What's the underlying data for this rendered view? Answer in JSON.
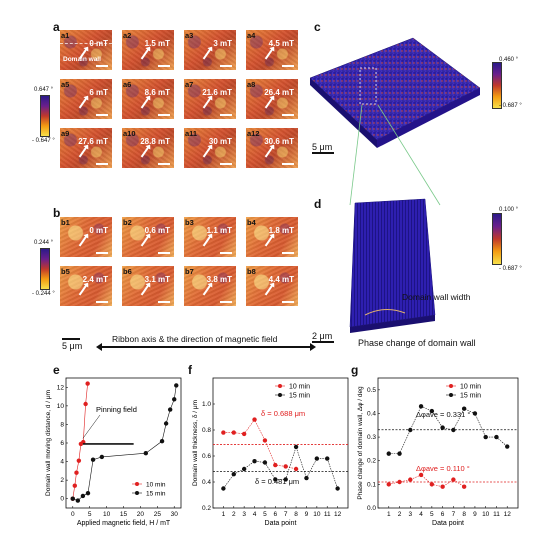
{
  "header_text": "",
  "panel_labels": {
    "a": "a",
    "b": "b",
    "c": "c",
    "d": "d",
    "e": "e",
    "f": "f",
    "g": "g"
  },
  "a_tiles": [
    {
      "id": "a1",
      "field": "0 mT"
    },
    {
      "id": "a2",
      "field": "1.5 mT"
    },
    {
      "id": "a3",
      "field": "3 mT"
    },
    {
      "id": "a4",
      "field": "4.5 mT"
    },
    {
      "id": "a5",
      "field": "6 mT"
    },
    {
      "id": "a6",
      "field": "8.6 mT"
    },
    {
      "id": "a7",
      "field": "21.6 mT"
    },
    {
      "id": "a8",
      "field": "26.4 mT"
    },
    {
      "id": "a9",
      "field": "27.6 mT"
    },
    {
      "id": "a10",
      "field": "28.8 mT"
    },
    {
      "id": "a11",
      "field": "30 mT"
    },
    {
      "id": "a12",
      "field": "30.6 mT"
    }
  ],
  "a_domain_wall_label": "Domain wall",
  "a_colorbar": {
    "max": "0.647 °",
    "min": "- 0.647 °"
  },
  "b_tiles": [
    {
      "id": "b1",
      "field": "0 mT"
    },
    {
      "id": "b2",
      "field": "0.6 mT"
    },
    {
      "id": "b3",
      "field": "1.1 mT"
    },
    {
      "id": "b4",
      "field": "1.8 mT"
    },
    {
      "id": "b5",
      "field": "2.4 mT"
    },
    {
      "id": "b6",
      "field": "3.1 mT"
    },
    {
      "id": "b7",
      "field": "3.8 mT"
    },
    {
      "id": "b8",
      "field": "4.4 mT"
    }
  ],
  "b_colorbar": {
    "max": "0.244 °",
    "min": "- 0.244 °"
  },
  "scale_bar_ab": "5 μm",
  "ribbon_text": "Ribbon axis & the direction of magnetic field",
  "c_colorbar": {
    "max": "0.460 °",
    "min": "- 0.687 °"
  },
  "c_scale": "5 μm",
  "d_colorbar": {
    "max": "0.100 °",
    "min": "- 0.687 °"
  },
  "d_scale": "2 μm",
  "d_domain_wall_width": "Domain wall width",
  "d_caption": "Phase change of domain wall",
  "colors": {
    "red": "#e02020",
    "black": "#111111",
    "blue": "#2a1aa8"
  },
  "chart_data": [
    {
      "id": "e",
      "type": "line",
      "xlabel": "Applied magnetic field, H / mT",
      "ylabel": "Domain wall moving distance, d / μm",
      "xlim": [
        -2,
        32
      ],
      "ylim": [
        -1,
        13
      ],
      "xticks": [
        0,
        5,
        10,
        15,
        20,
        25,
        30
      ],
      "yticks": [
        0,
        2,
        4,
        6,
        8,
        10,
        12
      ],
      "annotation": "Pinning field",
      "legend": "bottom-right",
      "series": [
        {
          "name": "10 min",
          "color": "#e02020",
          "x": [
            0,
            0.6,
            1.1,
            1.8,
            2.4,
            3.1,
            3.8,
            4.4
          ],
          "y": [
            0,
            1.4,
            2.8,
            4.1,
            5.9,
            6.1,
            10.2,
            12.4
          ]
        },
        {
          "name": "15 min",
          "color": "#111111",
          "x": [
            0,
            1.5,
            3,
            4.5,
            6,
            8.6,
            21.6,
            26.4,
            27.6,
            28.8,
            30,
            30.6
          ],
          "y": [
            0,
            -0.2,
            0.3,
            0.6,
            4.2,
            4.5,
            4.9,
            6.2,
            8.1,
            9.6,
            10.7,
            12.2
          ]
        }
      ]
    },
    {
      "id": "f",
      "type": "line",
      "xlabel": "Data point",
      "ylabel": "Domain wall thickness, δ / μm",
      "xlim": [
        0,
        13
      ],
      "ylim": [
        0.2,
        1.2
      ],
      "xticks": [
        1,
        2,
        3,
        4,
        5,
        6,
        7,
        8,
        9,
        10,
        11,
        12
      ],
      "yticks": [
        0.2,
        0.4,
        0.6,
        0.8,
        1.0
      ],
      "legend": "top-right",
      "series": [
        {
          "name": "10 min",
          "color": "#e02020",
          "x": [
            1,
            2,
            3,
            4,
            5,
            6,
            7,
            8
          ],
          "y": [
            0.78,
            0.78,
            0.77,
            0.88,
            0.72,
            0.53,
            0.52,
            0.5
          ]
        },
        {
          "name": "15 min",
          "color": "#111111",
          "x": [
            1,
            2,
            3,
            4,
            5,
            6,
            7,
            8,
            9,
            10,
            11,
            12
          ],
          "y": [
            0.35,
            0.46,
            0.5,
            0.56,
            0.55,
            0.42,
            0.42,
            0.67,
            0.43,
            0.58,
            0.58,
            0.35
          ]
        }
      ],
      "hlines": [
        {
          "y": 0.688,
          "color": "#e02020",
          "label": "δ = 0.688 μm"
        },
        {
          "y": 0.481,
          "color": "#111111",
          "label": "δ = 0.481 μm"
        }
      ]
    },
    {
      "id": "g",
      "type": "line",
      "xlabel": "Data point",
      "ylabel": "Phase change of domain wall, Δφ / deg",
      "xlim": [
        0,
        13
      ],
      "ylim": [
        0.0,
        0.55
      ],
      "xticks": [
        1,
        2,
        3,
        4,
        5,
        6,
        7,
        8,
        9,
        10,
        11,
        12
      ],
      "yticks": [
        0.0,
        0.1,
        0.2,
        0.3,
        0.4,
        0.5
      ],
      "legend": "top-right",
      "series": [
        {
          "name": "10 min",
          "color": "#e02020",
          "x": [
            1,
            2,
            3,
            4,
            5,
            6,
            7,
            8
          ],
          "y": [
            0.1,
            0.11,
            0.12,
            0.14,
            0.1,
            0.09,
            0.12,
            0.09
          ]
        },
        {
          "name": "15 min",
          "color": "#111111",
          "x": [
            1,
            2,
            3,
            4,
            5,
            6,
            7,
            8,
            9,
            10,
            11,
            12
          ],
          "y": [
            0.23,
            0.23,
            0.33,
            0.43,
            0.41,
            0.34,
            0.33,
            0.42,
            0.4,
            0.3,
            0.3,
            0.26
          ]
        }
      ],
      "hlines": [
        {
          "y": 0.331,
          "color": "#111111",
          "label": "Δφave = 0.331 °"
        },
        {
          "y": 0.11,
          "color": "#e02020",
          "label": "Δφave = 0.110 °"
        }
      ]
    }
  ]
}
